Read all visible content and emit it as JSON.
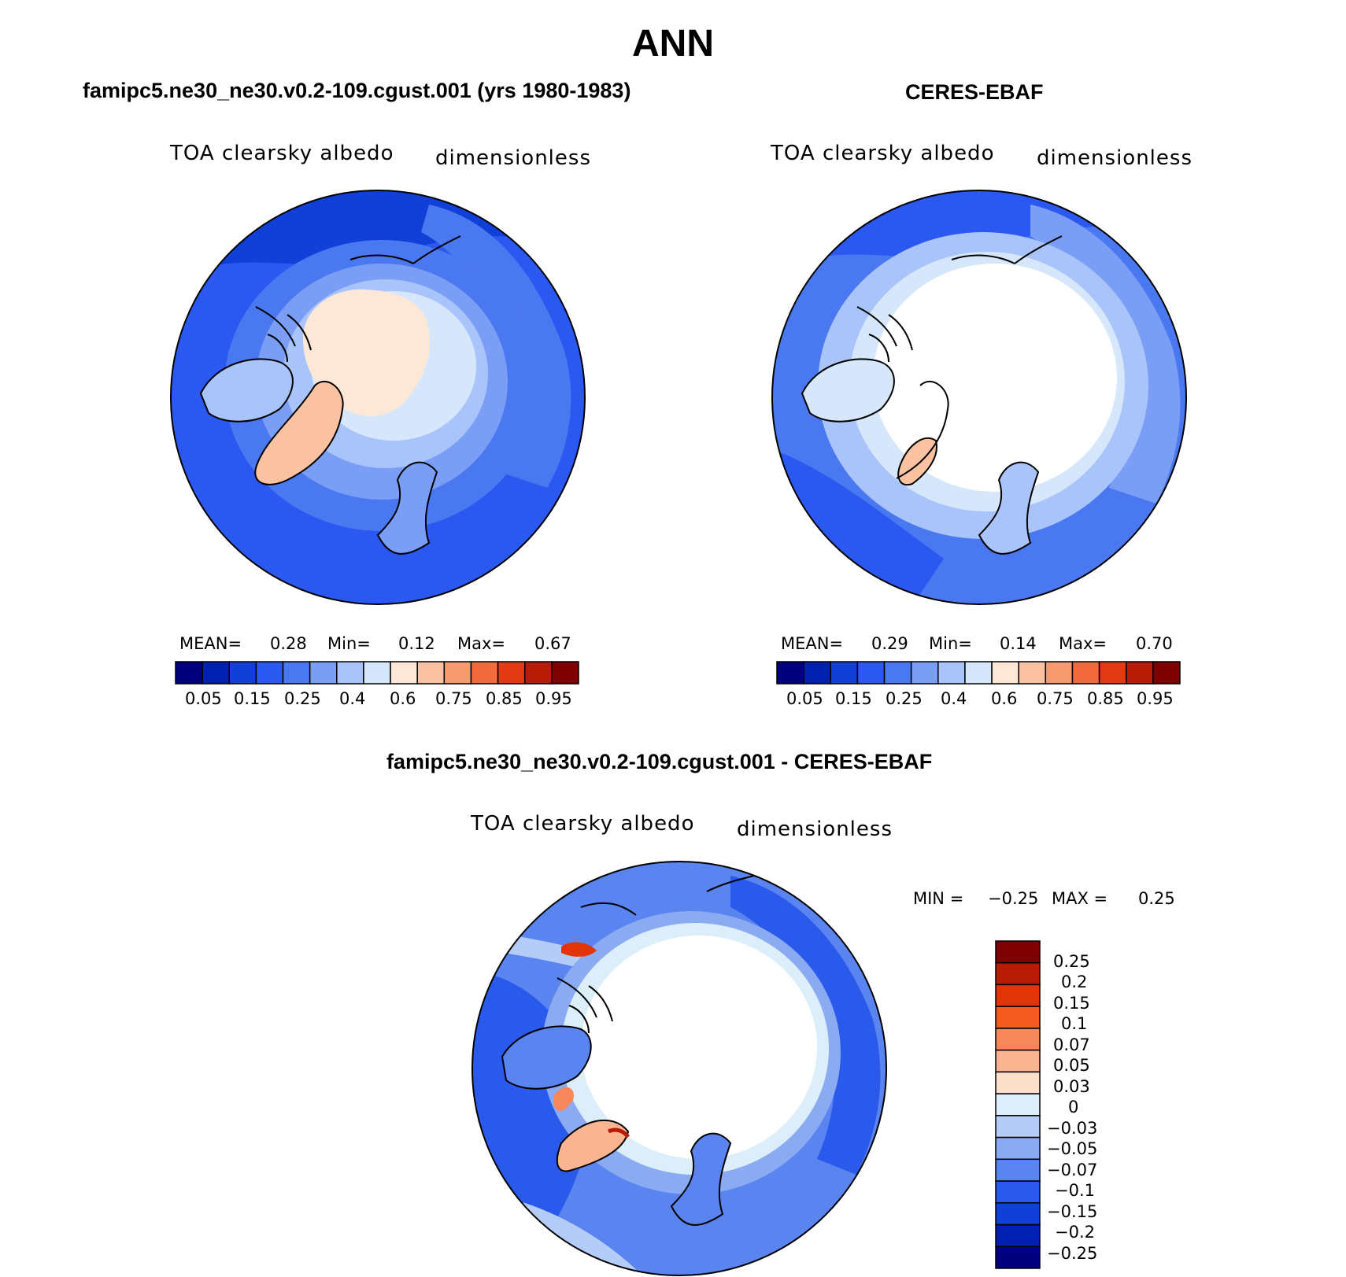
{
  "figure": {
    "season": "ANN"
  },
  "palette": {
    "sequential": [
      "#00007f",
      "#0020b0",
      "#1040d8",
      "#2a58f0",
      "#4a78f0",
      "#7a9ef5",
      "#a9c4fa",
      "#d6e7fb",
      "#fde8d8",
      "#fbc2a2",
      "#f79a70",
      "#f26a3c",
      "#e23a12",
      "#b71a05",
      "#7f0000"
    ],
    "diff": [
      "#7f0000",
      "#b71a05",
      "#e03508",
      "#f55a20",
      "#f7875a",
      "#fab492",
      "#fde0cc",
      "#ddeefb",
      "#b4ccf8",
      "#8aaaf2",
      "#5a84ef",
      "#2a5aeb",
      "#1040d8",
      "#0020b0",
      "#00007f"
    ]
  },
  "panels": [
    {
      "id": "model",
      "title": "famipc5.ne30_ne30.v0.2-109.cgust.001 (yrs 1980-1983)",
      "variable": "TOA clearsky albedo",
      "units": "dimensionless",
      "stats": {
        "mean_label": "MEAN=",
        "mean": "0.28",
        "min_label": "Min=",
        "min": "0.12",
        "max_label": "Max=",
        "max": "0.67"
      },
      "colorbar_labels": [
        "0.05",
        "0.15",
        "0.25",
        "0.4",
        "0.6",
        "0.75",
        "0.85",
        "0.95"
      ]
    },
    {
      "id": "obs",
      "title": "CERES-EBAF",
      "variable": "TOA clearsky albedo",
      "units": "dimensionless",
      "stats": {
        "mean_label": "MEAN=",
        "mean": "0.29",
        "min_label": "Min=",
        "min": "0.14",
        "max_label": "Max=",
        "max": "0.70"
      },
      "colorbar_labels": [
        "0.05",
        "0.15",
        "0.25",
        "0.4",
        "0.6",
        "0.75",
        "0.85",
        "0.95"
      ]
    },
    {
      "id": "diff",
      "title": "famipc5.ne30_ne30.v0.2-109.cgust.001 - CERES-EBAF",
      "variable": "TOA clearsky albedo",
      "units": "dimensionless",
      "stats": {
        "min_label": "MIN =",
        "min": "−0.25",
        "max_label": "MAX =",
        "max": "0.25"
      },
      "colorbar_labels": [
        "0.25",
        "0.2",
        "0.15",
        "0.1",
        "0.07",
        "0.05",
        "0.03",
        "0",
        "−0.03",
        "−0.05",
        "−0.07",
        "−0.1",
        "−0.15",
        "−0.2",
        "−0.25"
      ]
    }
  ]
}
